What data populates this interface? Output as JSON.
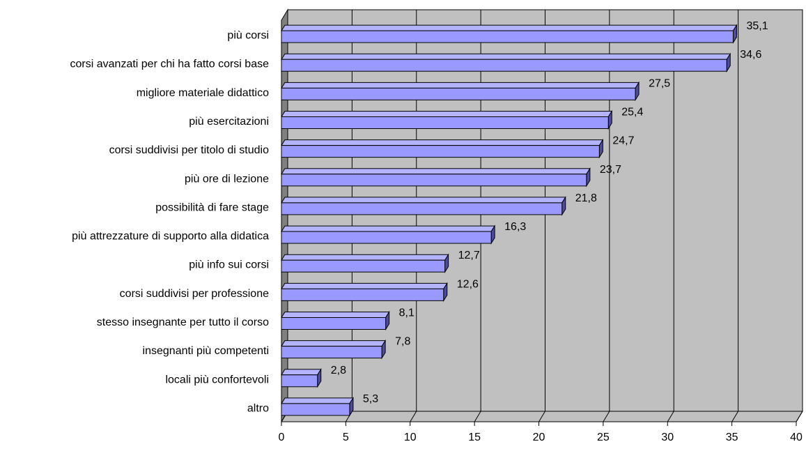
{
  "chart_data": {
    "type": "bar",
    "orientation": "horizontal",
    "title": "",
    "xlabel": "",
    "ylabel": "",
    "categories": [
      "più corsi",
      "corsi avanzati per chi ha fatto corsi base",
      "migliore materiale didattico",
      "più esercitazioni",
      "corsi suddivisi per titolo di studio",
      "più ore di lezione",
      "possibilità di fare stage",
      "più attrezzature di supporto alla didatica",
      "più info sui corsi",
      "corsi suddivisi per professione",
      "stesso insegnante per tutto il corso",
      "insegnanti più competenti",
      "locali più confortevoli",
      "altro"
    ],
    "values": [
      35.1,
      34.6,
      27.5,
      25.4,
      24.7,
      23.7,
      21.8,
      16.3,
      12.7,
      12.6,
      8.1,
      7.8,
      2.8,
      5.3
    ],
    "value_labels": [
      "35,1",
      "34,6",
      "27,5",
      "25,4",
      "24,7",
      "23,7",
      "21,8",
      "16,3",
      "12,7",
      "12,6",
      "8,1",
      "7,8",
      "2,8",
      "5,3"
    ],
    "xlim": [
      0,
      40
    ],
    "x_ticks": [
      0,
      5,
      10,
      15,
      20,
      25,
      30,
      35,
      40
    ],
    "x_tick_labels": [
      "0",
      "5",
      "10",
      "15",
      "20",
      "25",
      "30",
      "35",
      "40"
    ],
    "grid": "vertical",
    "legend": "none",
    "style": "3d",
    "colors": {
      "bar_front": "#9999ff",
      "bar_top": "#b3b3ff",
      "bar_side": "#4d4d99",
      "bar_edge": "#000000",
      "plot_back": "#c0c0c0",
      "plot_side_wall": "#808080",
      "plot_floor": "#c0c0c0",
      "grid": "#000000"
    }
  }
}
